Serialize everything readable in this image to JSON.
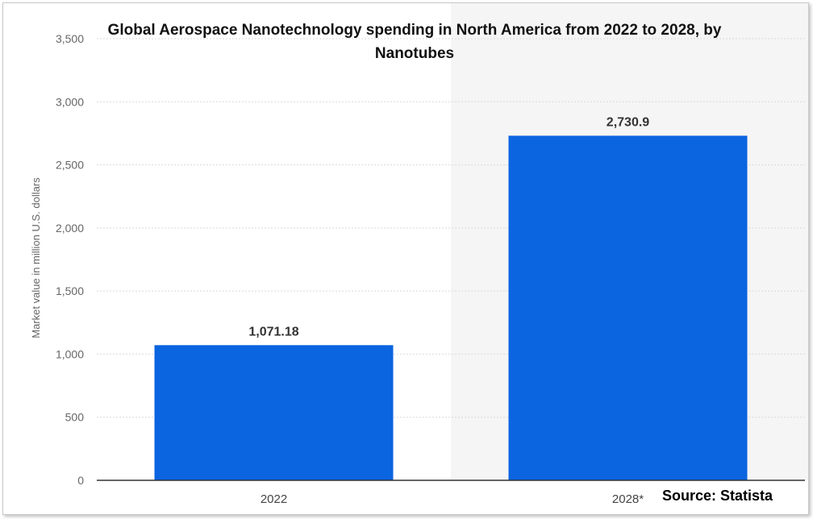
{
  "chart_data": {
    "type": "bar",
    "title": "Global Aerospace Nanotechnology spending in North America from 2022 to 2028, by Nanotubes",
    "ylabel": "Market value in million U.S. dollars",
    "xlabel": "",
    "categories": [
      "2022",
      "2028*"
    ],
    "values": [
      1071.18,
      2730.9
    ],
    "value_labels": [
      "1,071.18",
      "2,730.9"
    ],
    "ylim": [
      0,
      3500
    ],
    "yticks": [
      0,
      500,
      1000,
      1500,
      2000,
      2500,
      3000,
      3500
    ],
    "ytick_labels": [
      "0",
      "500",
      "1,000",
      "1,500",
      "2,000",
      "2,500",
      "3,000",
      "3,500"
    ],
    "grid": true,
    "legend": "none",
    "forecast_shaded_category": "2028*"
  },
  "source": "Source: Statista",
  "colors": {
    "bar": "#0b64e0",
    "grid": "#d9d9d9",
    "forecast_bg": "#f5f5f5",
    "axis": "#333333",
    "tick_text": "#666666",
    "label_text": "#333333"
  }
}
